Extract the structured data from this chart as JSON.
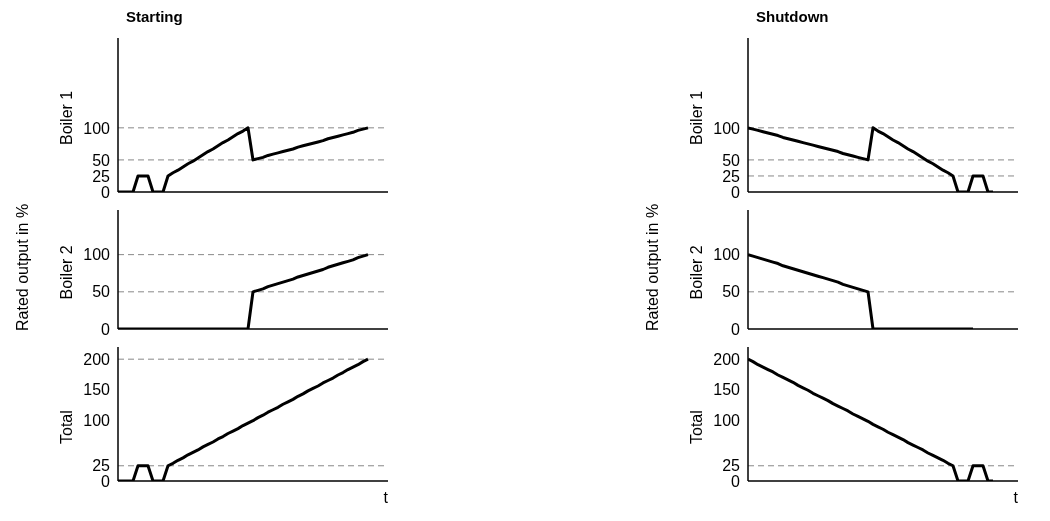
{
  "chart_data": [
    {
      "type": "line",
      "title": "Starting",
      "ylabel": "Boiler 1",
      "tick_labels": "y",
      "ylim": [
        0,
        240
      ],
      "yticks": [
        0,
        25,
        50,
        100
      ],
      "grid": false,
      "marker": "none",
      "line_style": "solid",
      "categories": [
        null,
        null,
        null,
        null,
        null,
        null,
        null,
        null,
        null,
        null,
        null,
        null,
        null,
        null,
        null,
        null,
        null,
        null,
        null,
        null,
        null,
        null,
        null,
        null,
        null,
        null,
        null,
        null,
        null,
        null,
        null,
        null,
        null,
        null,
        null,
        null,
        null,
        null,
        null,
        null,
        null,
        null,
        null,
        null,
        null,
        null,
        null,
        null,
        null,
        null,
        null
      ],
      "series": [
        {
          "color": "#000000",
          "values": [
            0,
            0,
            0,
            0,
            25,
            25,
            25,
            0,
            0,
            0,
            25,
            30,
            34,
            39,
            44,
            48,
            53,
            58,
            63,
            67,
            72,
            77,
            81,
            86,
            91,
            95,
            100,
            50,
            52,
            54,
            57,
            59,
            61,
            63,
            65,
            67,
            70,
            72,
            74,
            76,
            78,
            80,
            83,
            85,
            87,
            89,
            91,
            93,
            96,
            98,
            100
          ]
        }
      ],
      "ref_lines": [
        {
          "axis": "y",
          "value": 100,
          "color": "#888888",
          "line_style": "dashed"
        },
        {
          "axis": "y",
          "value": 50,
          "color": "#888888",
          "line_style": "dashed"
        }
      ]
    },
    {
      "type": "line",
      "ylabel": "Boiler 2",
      "tick_labels": "y",
      "ylim": [
        0,
        160
      ],
      "yticks": [
        0,
        50,
        100
      ],
      "grid": false,
      "marker": "none",
      "line_style": "solid",
      "categories": [
        null,
        null,
        null,
        null,
        null,
        null,
        null,
        null,
        null,
        null,
        null,
        null,
        null,
        null,
        null,
        null,
        null,
        null,
        null,
        null,
        null,
        null,
        null,
        null,
        null,
        null,
        null,
        null,
        null,
        null,
        null,
        null,
        null,
        null,
        null,
        null,
        null,
        null,
        null,
        null,
        null,
        null,
        null,
        null,
        null,
        null,
        null,
        null,
        null,
        null,
        null
      ],
      "series": [
        {
          "color": "#000000",
          "values": [
            0,
            0,
            0,
            0,
            0,
            0,
            0,
            0,
            0,
            0,
            0,
            0,
            0,
            0,
            0,
            0,
            0,
            0,
            0,
            0,
            0,
            0,
            0,
            0,
            0,
            0,
            0,
            50,
            52,
            54,
            57,
            59,
            61,
            63,
            65,
            67,
            70,
            72,
            74,
            76,
            78,
            80,
            83,
            85,
            87,
            89,
            91,
            93,
            96,
            98,
            100
          ]
        }
      ],
      "ref_lines": [
        {
          "axis": "y",
          "value": 100,
          "color": "#888888",
          "line_style": "dashed"
        },
        {
          "axis": "y",
          "value": 50,
          "color": "#888888",
          "line_style": "dashed"
        }
      ]
    },
    {
      "type": "line",
      "ylabel": "Total",
      "xlabel": "t",
      "tick_labels": "y",
      "ylim": [
        0,
        220
      ],
      "yticks": [
        0,
        25,
        100,
        150,
        200
      ],
      "grid": false,
      "marker": "none",
      "line_style": "solid",
      "annotations": [
        "Rated output in %"
      ],
      "categories": [
        null,
        null,
        null,
        null,
        null,
        null,
        null,
        null,
        null,
        null,
        null,
        null,
        null,
        null,
        null,
        null,
        null,
        null,
        null,
        null,
        null,
        null,
        null,
        null,
        null,
        null,
        null,
        null,
        null,
        null,
        null,
        null,
        null,
        null,
        null,
        null,
        null,
        null,
        null,
        null,
        null,
        null,
        null,
        null,
        null,
        null,
        null,
        null,
        null,
        null,
        null
      ],
      "series": [
        {
          "color": "#000000",
          "values": [
            0,
            0,
            0,
            0,
            25,
            25,
            25,
            0,
            0,
            0,
            25,
            29,
            34,
            38,
            43,
            47,
            51,
            56,
            60,
            64,
            69,
            73,
            78,
            82,
            86,
            91,
            95,
            99,
            104,
            108,
            113,
            117,
            121,
            126,
            130,
            134,
            139,
            143,
            148,
            152,
            156,
            161,
            165,
            169,
            174,
            178,
            183,
            187,
            191,
            196,
            200
          ]
        }
      ],
      "ref_lines": [
        {
          "axis": "y",
          "value": 200,
          "color": "#888888",
          "line_style": "dashed"
        },
        {
          "axis": "y",
          "value": 25,
          "color": "#888888",
          "line_style": "dashed"
        }
      ]
    },
    {
      "type": "line",
      "title": "Shutdown",
      "ylabel": "Boiler 1",
      "tick_labels": "y",
      "ylim": [
        0,
        240
      ],
      "yticks": [
        0,
        25,
        50,
        100
      ],
      "grid": false,
      "marker": "none",
      "line_style": "solid",
      "categories": [
        null,
        null,
        null,
        null,
        null,
        null,
        null,
        null,
        null,
        null,
        null,
        null,
        null,
        null,
        null,
        null,
        null,
        null,
        null,
        null,
        null,
        null,
        null,
        null,
        null,
        null,
        null,
        null,
        null,
        null,
        null,
        null,
        null,
        null,
        null,
        null,
        null,
        null,
        null,
        null,
        null,
        null,
        null,
        null,
        null,
        null,
        null,
        null,
        null,
        null,
        null
      ],
      "series": [
        {
          "color": "#000000",
          "values": [
            100,
            98,
            96,
            94,
            92,
            90,
            88,
            85,
            83,
            81,
            79,
            77,
            75,
            73,
            71,
            69,
            67,
            65,
            63,
            60,
            58,
            56,
            54,
            52,
            50,
            100,
            95,
            91,
            86,
            81,
            77,
            72,
            67,
            63,
            58,
            53,
            48,
            44,
            39,
            34,
            30,
            25,
            0,
            0,
            0,
            25,
            25,
            25,
            0,
            0,
            null
          ]
        }
      ],
      "ref_lines": [
        {
          "axis": "y",
          "value": 100,
          "color": "#888888",
          "line_style": "dashed"
        },
        {
          "axis": "y",
          "value": 50,
          "color": "#888888",
          "line_style": "dashed"
        },
        {
          "axis": "y",
          "value": 25,
          "color": "#888888",
          "line_style": "dashed"
        }
      ]
    },
    {
      "type": "line",
      "ylabel": "Boiler 2",
      "tick_labels": "y",
      "ylim": [
        0,
        160
      ],
      "yticks": [
        0,
        50,
        100
      ],
      "grid": false,
      "marker": "none",
      "line_style": "solid",
      "categories": [
        null,
        null,
        null,
        null,
        null,
        null,
        null,
        null,
        null,
        null,
        null,
        null,
        null,
        null,
        null,
        null,
        null,
        null,
        null,
        null,
        null,
        null,
        null,
        null,
        null,
        null,
        null,
        null,
        null,
        null,
        null,
        null,
        null,
        null,
        null,
        null,
        null,
        null,
        null,
        null,
        null,
        null,
        null,
        null,
        null,
        null,
        null,
        null,
        null,
        null,
        null
      ],
      "series": [
        {
          "color": "#000000",
          "values": [
            100,
            98,
            96,
            94,
            92,
            90,
            88,
            85,
            83,
            81,
            79,
            77,
            75,
            73,
            71,
            69,
            67,
            65,
            63,
            60,
            58,
            56,
            54,
            52,
            50,
            0,
            0,
            0,
            0,
            0,
            0,
            0,
            0,
            0,
            0,
            0,
            0,
            0,
            0,
            0,
            0,
            0,
            0,
            0,
            0,
            0,
            null,
            null,
            null,
            null,
            null
          ]
        }
      ],
      "ref_lines": [
        {
          "axis": "y",
          "value": 50,
          "color": "#888888",
          "line_style": "dashed"
        }
      ]
    },
    {
      "type": "line",
      "ylabel": "Total",
      "xlabel": "t",
      "tick_labels": "y",
      "ylim": [
        0,
        220
      ],
      "yticks": [
        0,
        25,
        100,
        150,
        200
      ],
      "grid": false,
      "marker": "none",
      "line_style": "solid",
      "annotations": [
        "Rated output in %"
      ],
      "categories": [
        null,
        null,
        null,
        null,
        null,
        null,
        null,
        null,
        null,
        null,
        null,
        null,
        null,
        null,
        null,
        null,
        null,
        null,
        null,
        null,
        null,
        null,
        null,
        null,
        null,
        null,
        null,
        null,
        null,
        null,
        null,
        null,
        null,
        null,
        null,
        null,
        null,
        null,
        null,
        null,
        null,
        null,
        null,
        null,
        null,
        null,
        null,
        null,
        null,
        null,
        null
      ],
      "series": [
        {
          "color": "#000000",
          "values": [
            200,
            196,
            191,
            187,
            183,
            179,
            174,
            170,
            166,
            162,
            157,
            153,
            149,
            144,
            140,
            136,
            132,
            127,
            123,
            119,
            115,
            110,
            106,
            102,
            98,
            93,
            89,
            85,
            80,
            76,
            72,
            68,
            63,
            59,
            55,
            51,
            46,
            42,
            38,
            34,
            29,
            25,
            0,
            0,
            0,
            25,
            25,
            25,
            0,
            0,
            null
          ]
        }
      ],
      "ref_lines": [
        {
          "axis": "y",
          "value": 25,
          "color": "#888888",
          "line_style": "dashed"
        }
      ]
    }
  ]
}
